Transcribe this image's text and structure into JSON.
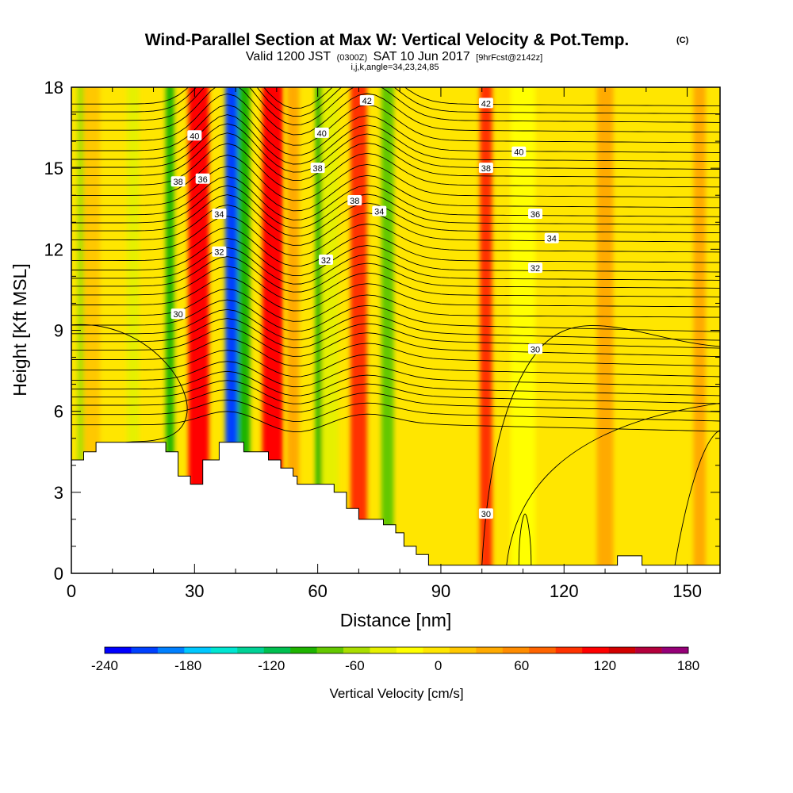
{
  "chart_data": {
    "type": "heatmap",
    "title": "Wind-Parallel Section at Max W: Vertical Velocity & Pot.Temp.",
    "title_tag": "(C)",
    "subtitle_parts": [
      "Valid 1200 JST",
      "(0300Z)",
      "SAT 10 Jun 2017",
      "[9hrFcst@2142z]"
    ],
    "params": "i,j,k,angle=34,23,24,85",
    "xlabel": "Distance [nm]",
    "ylabel": "Height [Kft MSL]",
    "xlim": [
      0,
      158
    ],
    "ylim": [
      0,
      18
    ],
    "x_ticks": [
      0,
      30,
      60,
      90,
      120,
      150
    ],
    "y_ticks": [
      0,
      3,
      6,
      9,
      12,
      15,
      18
    ],
    "colorbar": {
      "title": "Vertical Velocity [cm/s]",
      "min": -240,
      "max": 180,
      "step": 20,
      "tick_labels": [
        "-240",
        "-180",
        "-120",
        "-60",
        "0",
        "60",
        "120",
        "180"
      ],
      "colors": [
        "#0000ff",
        "#0040ff",
        "#0080ff",
        "#00c8ff",
        "#00e6d2",
        "#00d296",
        "#00c050",
        "#1eb400",
        "#64c800",
        "#aade00",
        "#e6f000",
        "#ffff00",
        "#ffe600",
        "#ffc800",
        "#ffaa00",
        "#ff8c00",
        "#ff6400",
        "#ff3200",
        "#ff0000",
        "#d20000",
        "#b4003c",
        "#960078"
      ]
    },
    "shaded_field": "Vertical Velocity [cm/s]",
    "w_columns": [
      {
        "x": 3,
        "w": 3,
        "value": -45
      },
      {
        "x": 5,
        "w": 4,
        "value": 20
      },
      {
        "x": 15,
        "w": 3,
        "value": -30
      },
      {
        "x": 24,
        "w": 2,
        "value": -90
      },
      {
        "x": 31,
        "w": 5,
        "value": 130
      },
      {
        "x": 39,
        "w": 3,
        "value": -220
      },
      {
        "x": 42,
        "w": 3,
        "value": -100
      },
      {
        "x": 49,
        "w": 5,
        "value": 120
      },
      {
        "x": 54,
        "w": 3,
        "value": 40
      },
      {
        "x": 61,
        "w": 3,
        "value": -90
      },
      {
        "x": 63,
        "w": 4,
        "value": -30
      },
      {
        "x": 70,
        "w": 4,
        "value": 110
      },
      {
        "x": 77,
        "w": 3,
        "value": -70
      },
      {
        "x": 85,
        "w": 4,
        "value": 10
      },
      {
        "x": 101,
        "w": 3,
        "value": 110
      },
      {
        "x": 110,
        "w": 6,
        "value": -15
      },
      {
        "x": 130,
        "w": 4,
        "value": 40
      },
      {
        "x": 153,
        "w": 3,
        "value": 40
      }
    ],
    "theta_contours": [
      {
        "value": 30,
        "labels": [
          {
            "x": 26,
            "y": 9.6
          },
          {
            "x": 101,
            "y": 2.2
          },
          {
            "x": 113,
            "y": 8.3
          }
        ]
      },
      {
        "value": 32,
        "labels": [
          {
            "x": 36,
            "y": 11.9
          },
          {
            "x": 62,
            "y": 11.6
          },
          {
            "x": 113,
            "y": 11.3
          }
        ]
      },
      {
        "value": 34,
        "labels": [
          {
            "x": 36,
            "y": 13.3
          },
          {
            "x": 75,
            "y": 13.4
          },
          {
            "x": 117,
            "y": 12.4
          }
        ]
      },
      {
        "value": 36,
        "labels": [
          {
            "x": 32,
            "y": 14.6
          },
          {
            "x": 113,
            "y": 13.3
          }
        ]
      },
      {
        "value": 38,
        "labels": [
          {
            "x": 26,
            "y": 14.5
          },
          {
            "x": 60,
            "y": 15.0
          },
          {
            "x": 69,
            "y": 13.8
          },
          {
            "x": 101,
            "y": 15.0
          }
        ]
      },
      {
        "value": 40,
        "labels": [
          {
            "x": 30,
            "y": 16.2
          },
          {
            "x": 61,
            "y": 16.3
          },
          {
            "x": 109,
            "y": 15.6
          }
        ]
      },
      {
        "value": 42,
        "labels": [
          {
            "x": 72,
            "y": 17.5
          },
          {
            "x": 101,
            "y": 17.4
          }
        ]
      }
    ],
    "theta_levels_count": 36,
    "terrain": [
      [
        0,
        4.2
      ],
      [
        3,
        4.2
      ],
      [
        3,
        4.5
      ],
      [
        6,
        4.5
      ],
      [
        6,
        4.85
      ],
      [
        23,
        4.85
      ],
      [
        23,
        4.5
      ],
      [
        26,
        4.5
      ],
      [
        26,
        3.6
      ],
      [
        29,
        3.6
      ],
      [
        29,
        3.3
      ],
      [
        32,
        3.3
      ],
      [
        32,
        4.2
      ],
      [
        36,
        4.2
      ],
      [
        36,
        4.85
      ],
      [
        42,
        4.85
      ],
      [
        42,
        4.5
      ],
      [
        48,
        4.5
      ],
      [
        48,
        4.2
      ],
      [
        51,
        4.2
      ],
      [
        51,
        3.9
      ],
      [
        54,
        3.9
      ],
      [
        54,
        3.6
      ],
      [
        55,
        3.6
      ],
      [
        55,
        3.3
      ],
      [
        64,
        3.3
      ],
      [
        64,
        3.0
      ],
      [
        67,
        3.0
      ],
      [
        67,
        2.4
      ],
      [
        70,
        2.4
      ],
      [
        70,
        2.0
      ],
      [
        76,
        2.0
      ],
      [
        76,
        1.8
      ],
      [
        79,
        1.8
      ],
      [
        79,
        1.5
      ],
      [
        81,
        1.5
      ],
      [
        81,
        1.0
      ],
      [
        84,
        1.0
      ],
      [
        84,
        0.7
      ],
      [
        87,
        0.7
      ],
      [
        87,
        0.3
      ],
      [
        133,
        0.3
      ],
      [
        133,
        0.65
      ],
      [
        139,
        0.65
      ],
      [
        139,
        0.3
      ],
      [
        158,
        0.3
      ]
    ]
  }
}
